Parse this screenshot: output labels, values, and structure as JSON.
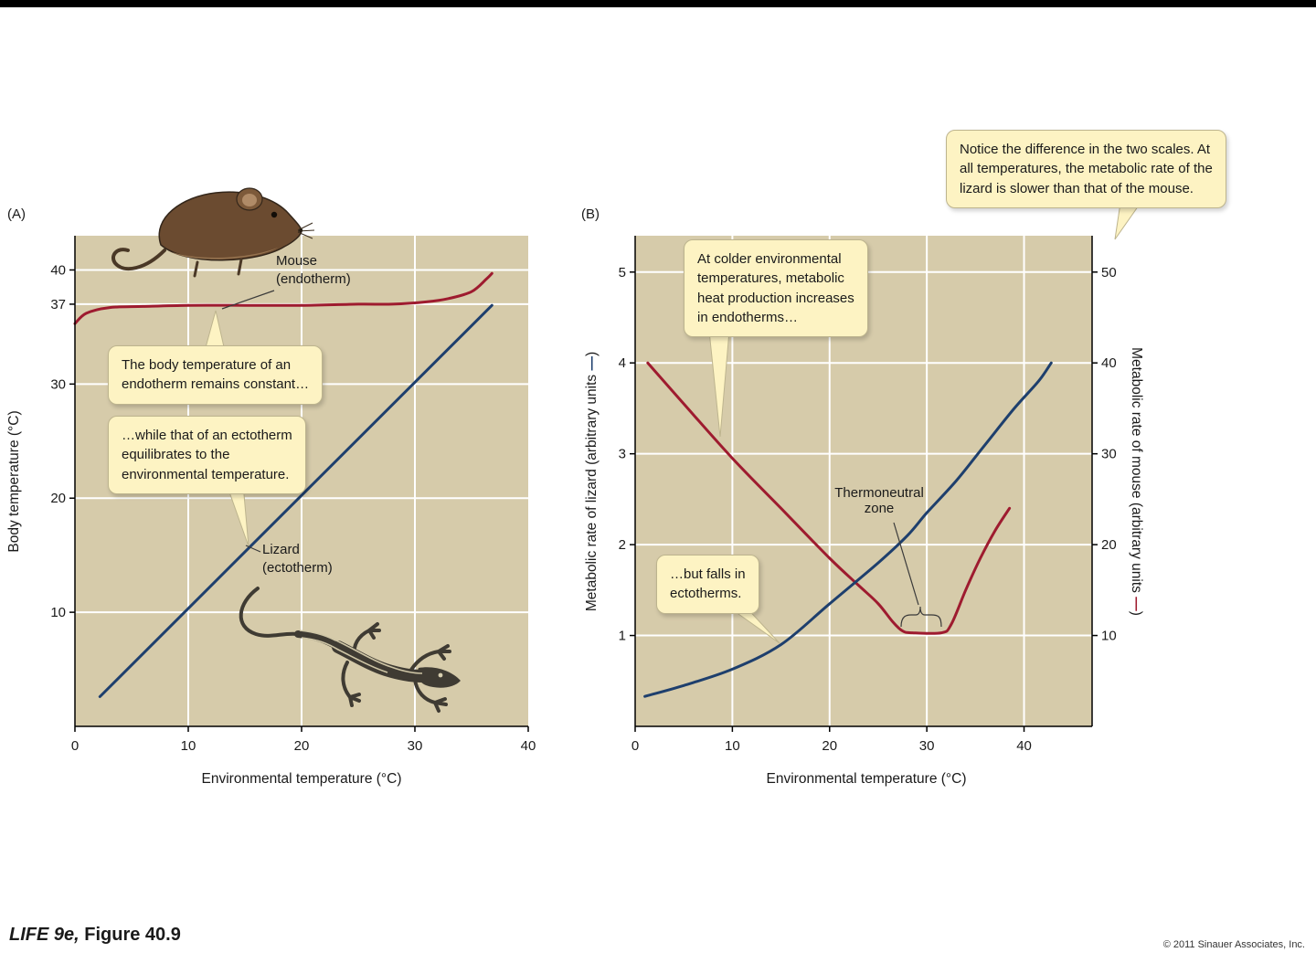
{
  "page": {
    "panel_a_label": "(A)",
    "panel_b_label": "(B)",
    "footer": {
      "book": "LIFE 9e,",
      "figure": " Figure 40.9",
      "copyright": "© 2011 Sinauer Associates, Inc."
    }
  },
  "colors": {
    "plot_bg": "#d6cbaa",
    "grid": "#ffffff",
    "mouse": "#9e1b2f",
    "lizard": "#1e3f6d",
    "callout_bg": "#fdf3c3",
    "callout_border": "#bdb48e"
  },
  "panel_a": {
    "series_labels": {
      "mouse": "Mouse\n(endotherm)",
      "lizard": "Lizard\n(ectotherm)"
    },
    "callouts": {
      "endotherm_constant": "The body temperature of an\nendotherm remains constant…",
      "ectotherm_equilibrates": "…while that of an ectotherm\nequilibrates to the\nenvironmental temperature."
    },
    "xlabel": "Environmental temperature (°C)",
    "ylabel": "Body temperature (°C)"
  },
  "panel_b": {
    "callouts": {
      "endotherm_cold": "At colder environmental\ntemperatures, metabolic\nheat production increases\nin endotherms…",
      "ectotherm_falls": "…but falls in\nectotherms.",
      "scales_note": "Notice the difference in the two scales. At\nall temperatures, the metabolic rate of the\nlizard is slower than that of the mouse."
    },
    "thermoneutral_label": "Thermoneutral\nzone",
    "xlabel": "Environmental temperature (°C)",
    "ylabel_left_pre": "Metabolic rate of lizard (arbitrary units ",
    "ylabel_right_pre": "Metabolic rate of mouse (arbitrary units ",
    "legend_dash": "—",
    "paren_close": ")"
  },
  "chart_data": [
    {
      "type": "line",
      "title": "",
      "xlabel": "Environmental temperature (°C)",
      "ylabel": "Body temperature (°C)",
      "xlim": [
        0,
        40
      ],
      "ylim": [
        0,
        43
      ],
      "xticks": [
        0,
        10,
        20,
        30,
        40
      ],
      "yticks": [
        10,
        20,
        30,
        37,
        40
      ],
      "grid": true,
      "series": [
        {
          "name": "Mouse (endotherm)",
          "color": "#9e1b2f",
          "axis": "left",
          "points": [
            [
              0,
              35.3
            ],
            [
              1,
              36.2
            ],
            [
              3,
              36.7
            ],
            [
              6,
              36.8
            ],
            [
              10,
              36.9
            ],
            [
              15,
              36.9
            ],
            [
              20,
              36.9
            ],
            [
              25,
              37.0
            ],
            [
              28,
              37.0
            ],
            [
              31,
              37.2
            ],
            [
              33,
              37.5
            ],
            [
              35,
              38.1
            ],
            [
              36.3,
              39.2
            ],
            [
              36.8,
              39.7
            ]
          ]
        },
        {
          "name": "Lizard (ectotherm)",
          "color": "#1e3f6d",
          "axis": "left",
          "points": [
            [
              2.2,
              2.6
            ],
            [
              36.8,
              36.9
            ]
          ]
        }
      ]
    },
    {
      "type": "line",
      "title": "",
      "xlabel": "Environmental temperature (°C)",
      "ylabel": "Metabolic rate of lizard (arbitrary units)",
      "y2label": "Metabolic rate of mouse (arbitrary units)",
      "xlim": [
        0,
        47
      ],
      "ylim": [
        0,
        5.4
      ],
      "y2lim": [
        0,
        54
      ],
      "xticks": [
        0,
        10,
        20,
        30,
        40
      ],
      "yticks": [
        1,
        2,
        3,
        4,
        5
      ],
      "y2ticks": [
        10,
        20,
        30,
        40,
        50
      ],
      "grid": true,
      "thermoneutral_zone_x": [
        27.5,
        31.5
      ],
      "series": [
        {
          "name": "Mouse metabolic rate",
          "color": "#9e1b2f",
          "axis": "right",
          "points": [
            [
              1.3,
              40
            ],
            [
              5,
              35.5
            ],
            [
              10,
              29.5
            ],
            [
              15,
              24
            ],
            [
              20,
              18.5
            ],
            [
              23,
              15.5
            ],
            [
              25,
              13.5
            ],
            [
              26.5,
              11.5
            ],
            [
              27.5,
              10.5
            ],
            [
              28.5,
              10.3
            ],
            [
              31.5,
              10.3
            ],
            [
              32.5,
              11.2
            ],
            [
              34,
              15
            ],
            [
              35.5,
              18.5
            ],
            [
              37,
              21.5
            ],
            [
              38.5,
              24
            ]
          ]
        },
        {
          "name": "Lizard metabolic rate",
          "color": "#1e3f6d",
          "axis": "left",
          "points": [
            [
              1,
              0.33
            ],
            [
              5,
              0.45
            ],
            [
              10,
              0.63
            ],
            [
              15,
              0.9
            ],
            [
              20,
              1.35
            ],
            [
              25,
              1.8
            ],
            [
              28,
              2.1
            ],
            [
              30,
              2.35
            ],
            [
              33,
              2.7
            ],
            [
              36,
              3.1
            ],
            [
              39,
              3.5
            ],
            [
              41.5,
              3.8
            ],
            [
              42.8,
              4.0
            ]
          ]
        }
      ]
    }
  ]
}
